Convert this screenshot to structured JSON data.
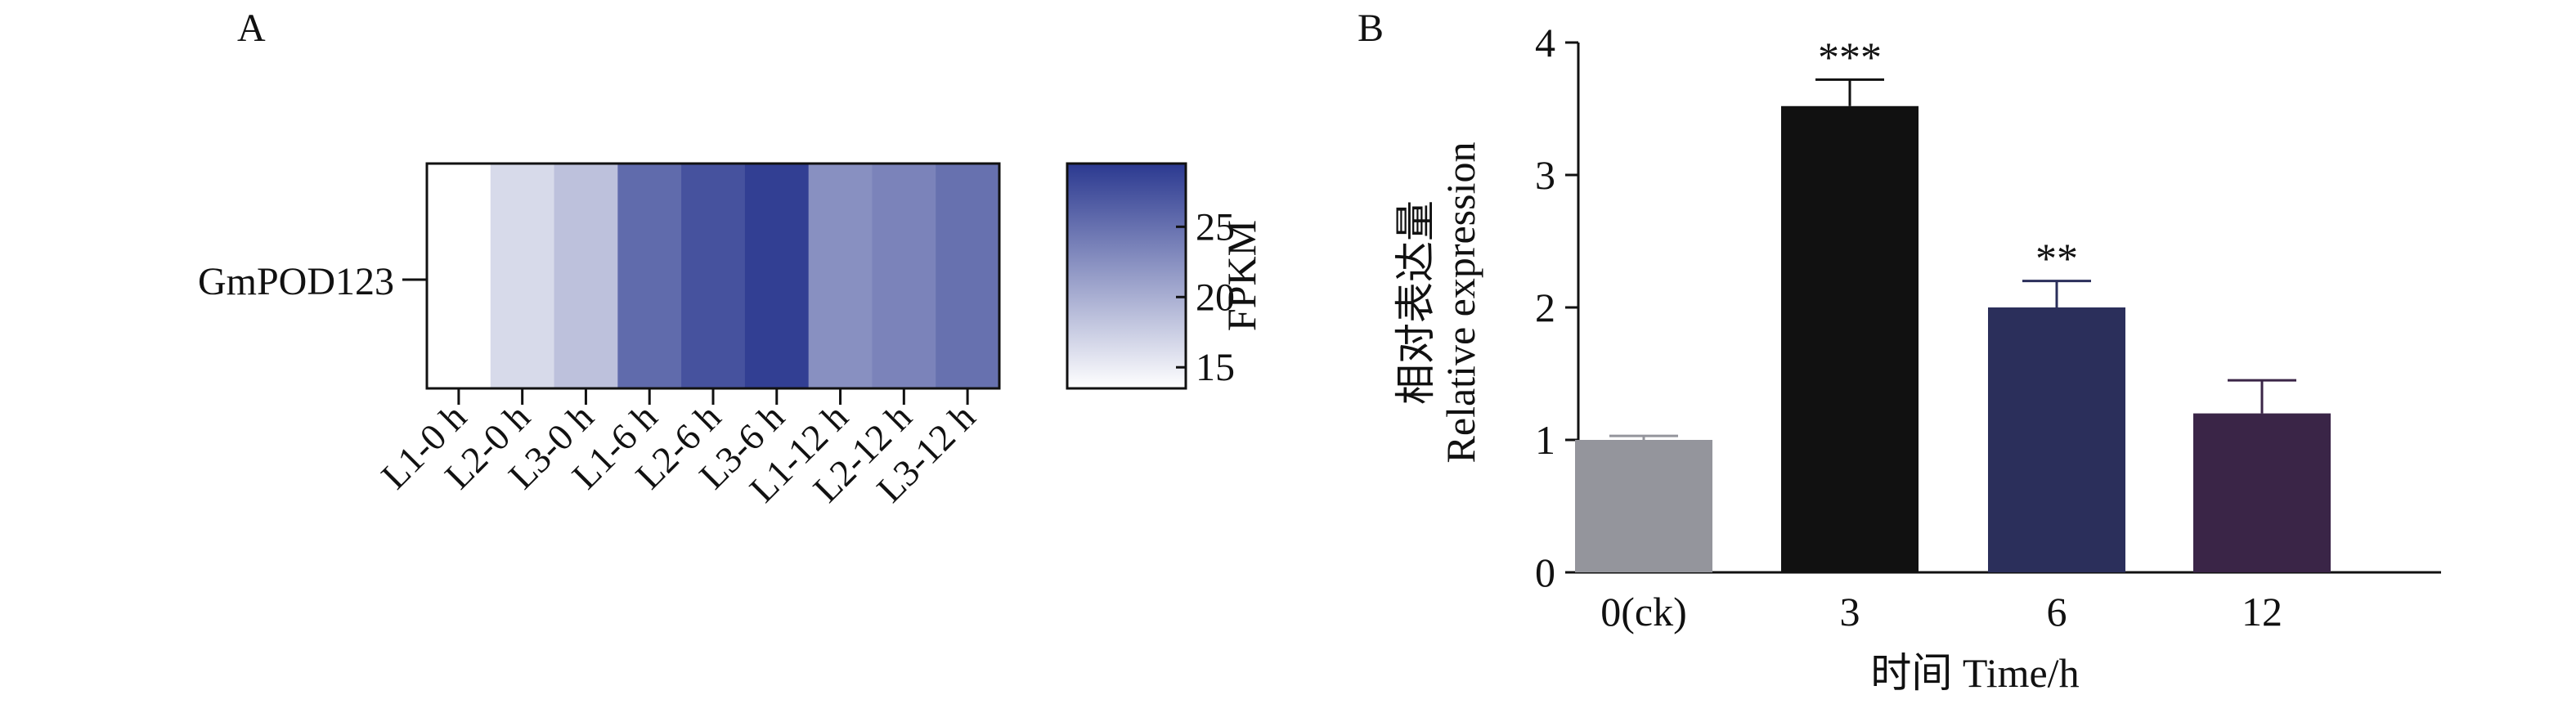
{
  "panel_a": {
    "label": "A",
    "row_label": "GmPOD123",
    "colorbar_label": "FPKM",
    "colorbar_ticks": [
      "25",
      "20",
      "15"
    ],
    "scale_min_color": "#ffffff",
    "scale_max_color": "#2b3990"
  },
  "panel_b": {
    "label": "B",
    "ylabel_cn": "相对表达量",
    "ylabel_en": "Relative expression",
    "xlabel": "时间 Time/h",
    "y_ticks": [
      "0",
      "1",
      "2",
      "3",
      "4"
    ]
  },
  "chart_data": [
    {
      "type": "heatmap",
      "rows": [
        "GmPOD123"
      ],
      "columns": [
        "L1-0 h",
        "L2-0 h",
        "L3-0 h",
        "L1-6 h",
        "L2-6 h",
        "L3-6 h",
        "L1-12 h",
        "L2-12 h",
        "L3-12 h"
      ],
      "values": [
        [
          13.5,
          16.5,
          18.5,
          25.5,
          27.5,
          29.0,
          22.5,
          23.5,
          25.0
        ]
      ],
      "color_range": [
        13.5,
        29.5
      ],
      "colorbar_ticks": [
        15,
        20,
        25
      ],
      "colorbar_label": "FPKM",
      "colors": [
        "#ffffff",
        "#2b3990"
      ]
    },
    {
      "type": "bar",
      "categories": [
        "0(ck)",
        "3",
        "6",
        "12"
      ],
      "values": [
        1.0,
        3.52,
        2.0,
        1.2
      ],
      "error": [
        0.03,
        0.2,
        0.2,
        0.25
      ],
      "significance": [
        "",
        "***",
        "**",
        ""
      ],
      "colors": [
        "#94959c",
        "#111111",
        "#2b2f5b",
        "#3a2547"
      ],
      "xlabel": "时间 Time/h",
      "ylabel": "相对表达量 Relative expression",
      "ylim": [
        0,
        4
      ],
      "yticks": [
        0,
        1,
        2,
        3,
        4
      ],
      "grid": false
    }
  ]
}
